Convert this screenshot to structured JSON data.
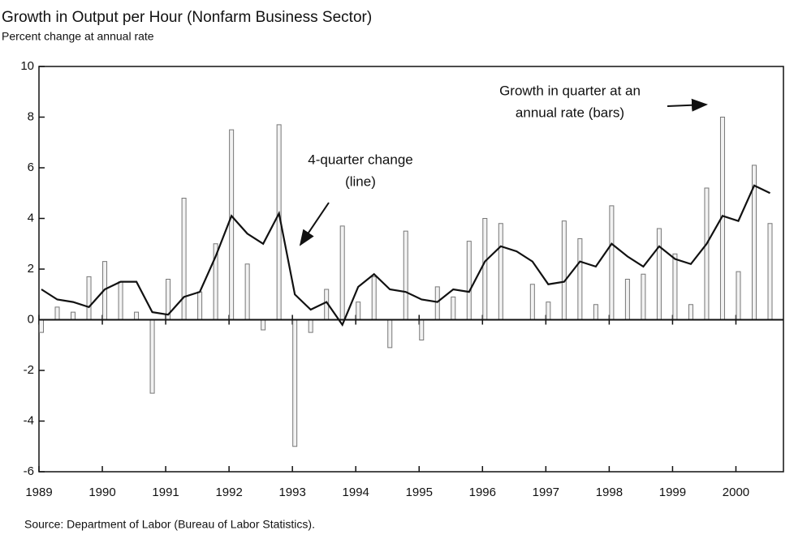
{
  "chart_data": {
    "type": "bar_line",
    "title": "Growth in Output per Hour (Nonfarm Business Sector)",
    "subtitle": "Percent change at annual rate",
    "source": "Source: Department of Labor  (Bureau of Labor Statistics).",
    "annotations": [
      {
        "lines": [
          "Growth in quarter at an",
          "annual rate (bars)"
        ]
      },
      {
        "lines": [
          "4-quarter change",
          "(line)"
        ]
      }
    ],
    "x": [
      1989,
      1989.25,
      1989.5,
      1989.75,
      1990,
      1990.25,
      1990.5,
      1990.75,
      1991,
      1991.25,
      1991.5,
      1991.75,
      1992,
      1992.25,
      1992.5,
      1992.75,
      1993,
      1993.25,
      1993.5,
      1993.75,
      1994,
      1994.25,
      1994.5,
      1994.75,
      1995,
      1995.25,
      1995.5,
      1995.75,
      1996,
      1996.25,
      1996.5,
      1996.75,
      1997,
      1997.25,
      1997.5,
      1997.75,
      1998,
      1998.25,
      1998.5,
      1998.75,
      1999,
      1999.25,
      1999.5,
      1999.75,
      2000,
      2000.25,
      2000.5
    ],
    "series": [
      {
        "type": "bar",
        "color": "#777777",
        "values": [
          -0.5,
          0.5,
          0.3,
          1.7,
          2.3,
          1.5,
          0.3,
          -2.9,
          1.6,
          4.8,
          1.1,
          3.0,
          7.5,
          2.2,
          -0.4,
          7.7,
          -5.0,
          -0.5,
          1.2,
          3.7,
          0.7,
          1.7,
          -1.1,
          3.5,
          -0.8,
          1.3,
          0.9,
          3.1,
          4.0,
          3.8,
          0.0,
          1.4,
          0.7,
          3.9,
          3.2,
          0.6,
          4.5,
          1.6,
          1.8,
          3.6,
          2.6,
          0.6,
          5.2,
          8.0,
          1.9,
          6.1,
          3.8
        ]
      },
      {
        "type": "line",
        "color": "#111111",
        "values": [
          1.2,
          0.8,
          0.7,
          0.5,
          1.2,
          1.5,
          1.5,
          0.3,
          0.2,
          0.9,
          1.1,
          2.5,
          4.1,
          3.4,
          3.0,
          4.2,
          1.0,
          0.4,
          0.7,
          -0.2,
          1.3,
          1.8,
          1.2,
          1.1,
          0.8,
          0.7,
          1.2,
          1.1,
          2.3,
          2.9,
          2.7,
          2.3,
          1.4,
          1.5,
          2.3,
          2.1,
          3.0,
          2.5,
          2.1,
          2.9,
          2.4,
          2.2,
          3.0,
          4.1,
          3.9,
          5.3,
          5.0
        ]
      }
    ],
    "xlim": [
      1989,
      2000.75
    ],
    "xticks": [
      1989,
      1990,
      1991,
      1992,
      1993,
      1994,
      1995,
      1996,
      1997,
      1998,
      1999,
      2000
    ],
    "ylim": [
      -6,
      10
    ],
    "yticks": [
      -6,
      -4,
      -2,
      0,
      2,
      4,
      6,
      8,
      10
    ]
  }
}
